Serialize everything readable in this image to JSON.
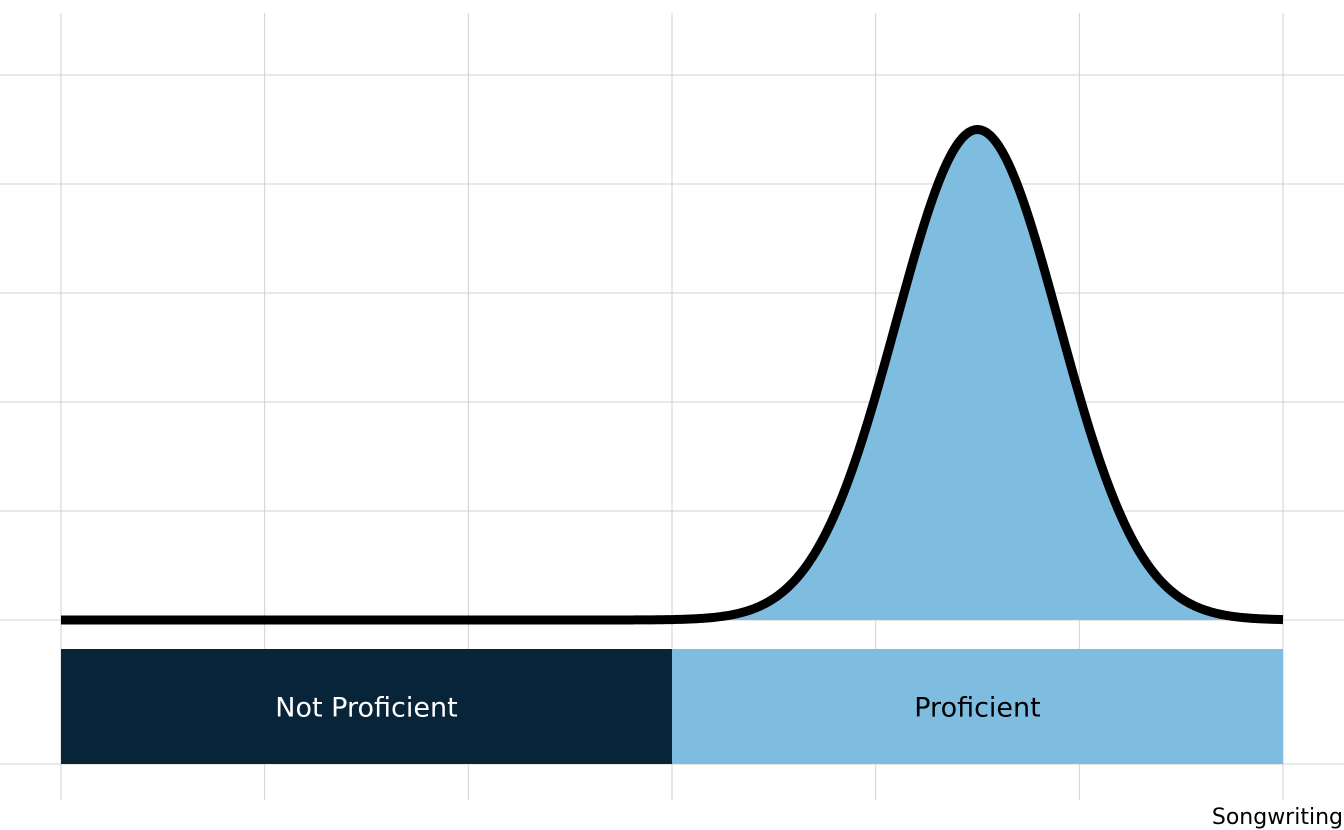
{
  "chart_data": {
    "type": "area",
    "xlabel": "Songwriting",
    "ylabel": "",
    "x_range": [
      0,
      6
    ],
    "y_range": [
      0,
      1
    ],
    "grid": true,
    "x_gridlines": [
      0,
      1,
      2,
      3,
      4,
      5,
      6
    ],
    "y_gridlines": [
      0.0,
      0.2,
      0.4,
      0.6,
      0.8,
      1.0
    ],
    "curve": {
      "distribution": "normal",
      "mean": 4.5,
      "sd": 0.4,
      "peak": 0.9,
      "shaded_from": 3,
      "shaded_to": 6,
      "line_color": "#000000",
      "fill_color": "#7ebce0"
    },
    "bands": [
      {
        "label": "Not Proficient",
        "from": 0,
        "to": 3,
        "color": "#082439",
        "text_color": "#ffffff"
      },
      {
        "label": "Proficient",
        "from": 3,
        "to": 6,
        "color": "#7ebce0",
        "text_color": "#000000"
      }
    ]
  }
}
